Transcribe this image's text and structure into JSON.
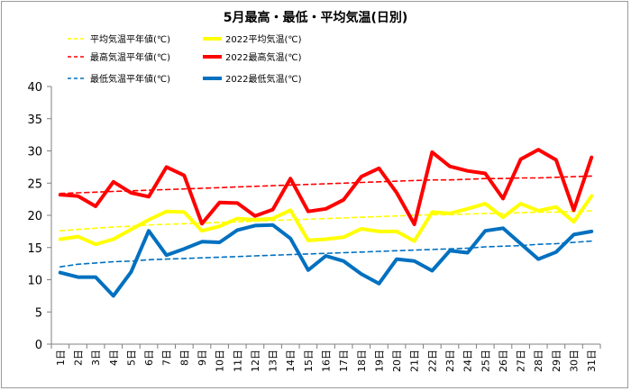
{
  "chart_data": {
    "type": "line",
    "title": "5月最高・最低・平均気温(日別)",
    "xlabel": "",
    "ylabel": "",
    "ylim": [
      0,
      40
    ],
    "yticks": [
      0,
      5,
      10,
      15,
      20,
      25,
      30,
      35,
      40
    ],
    "grid": false,
    "legend_position": "top",
    "categories": [
      "1日",
      "2日",
      "3日",
      "4日",
      "5日",
      "6日",
      "7日",
      "8日",
      "9日",
      "10日",
      "11日",
      "12日",
      "13日",
      "14日",
      "15日",
      "16日",
      "17日",
      "18日",
      "19日",
      "20日",
      "21日",
      "22日",
      "23日",
      "24日",
      "25日",
      "26日",
      "27日",
      "28日",
      "29日",
      "30日",
      "31日"
    ],
    "series": [
      {
        "name": "平均気温平年値(℃)",
        "color": "#ffff00",
        "style": "dashed",
        "width": 1.6,
        "values": [
          17.6,
          17.8,
          18.0,
          18.2,
          18.3,
          18.5,
          18.6,
          18.7,
          18.8,
          18.9,
          19.0,
          19.1,
          19.2,
          19.3,
          19.4,
          19.5,
          19.6,
          19.7,
          19.8,
          19.9,
          20.0,
          20.1,
          20.1,
          20.2,
          20.3,
          20.3,
          20.4,
          20.5,
          20.5,
          20.6,
          20.7
        ]
      },
      {
        "name": "2022平均気温(℃)",
        "color": "#ffff00",
        "style": "solid",
        "width": 4,
        "values": [
          16.3,
          16.7,
          15.5,
          16.3,
          17.8,
          19.3,
          20.6,
          20.5,
          17.6,
          18.3,
          19.5,
          19.3,
          19.5,
          20.8,
          16.1,
          16.3,
          16.6,
          17.9,
          17.5,
          17.5,
          16.0,
          20.5,
          20.3,
          21.0,
          21.8,
          19.7,
          21.8,
          20.7,
          21.3,
          19.0,
          23.0
        ]
      },
      {
        "name": "最高気温平年値(℃)",
        "color": "#ff0000",
        "style": "dashed",
        "width": 1.6,
        "values": [
          23.4,
          23.5,
          23.6,
          23.7,
          23.8,
          23.9,
          24.0,
          24.1,
          24.2,
          24.3,
          24.4,
          24.5,
          24.6,
          24.7,
          24.8,
          24.9,
          25.0,
          25.1,
          25.2,
          25.3,
          25.4,
          25.5,
          25.5,
          25.6,
          25.7,
          25.7,
          25.8,
          25.8,
          25.9,
          26.0,
          26.1
        ]
      },
      {
        "name": "2022最高気温(℃)",
        "color": "#ff0000",
        "style": "solid",
        "width": 4,
        "values": [
          23.2,
          23.0,
          21.4,
          25.2,
          23.5,
          22.9,
          27.5,
          26.2,
          18.7,
          22.0,
          21.9,
          19.9,
          20.9,
          25.7,
          20.6,
          21.0,
          22.4,
          26.0,
          27.3,
          23.5,
          18.6,
          29.8,
          27.6,
          26.9,
          26.5,
          22.6,
          28.7,
          30.2,
          28.6,
          20.8,
          29.0
        ]
      },
      {
        "name": "最低気温平年値(℃)",
        "color": "#0070c0",
        "style": "dashed",
        "width": 1.6,
        "values": [
          12.0,
          12.4,
          12.6,
          12.8,
          12.9,
          13.1,
          13.2,
          13.3,
          13.4,
          13.5,
          13.6,
          13.7,
          13.8,
          13.9,
          14.0,
          14.1,
          14.2,
          14.3,
          14.4,
          14.5,
          14.6,
          14.7,
          14.8,
          14.9,
          15.1,
          15.2,
          15.3,
          15.5,
          15.6,
          15.8,
          16.0
        ]
      },
      {
        "name": "2022最低気温(℃)",
        "color": "#0070c0",
        "style": "solid",
        "width": 4,
        "values": [
          11.1,
          10.4,
          10.4,
          7.5,
          11.2,
          17.6,
          13.8,
          14.8,
          15.9,
          15.8,
          17.7,
          18.4,
          18.5,
          16.4,
          11.5,
          13.7,
          12.9,
          10.9,
          9.4,
          13.2,
          12.9,
          11.4,
          14.5,
          14.2,
          17.6,
          18.0,
          15.6,
          13.2,
          14.3,
          17.0,
          17.5
        ]
      }
    ]
  }
}
